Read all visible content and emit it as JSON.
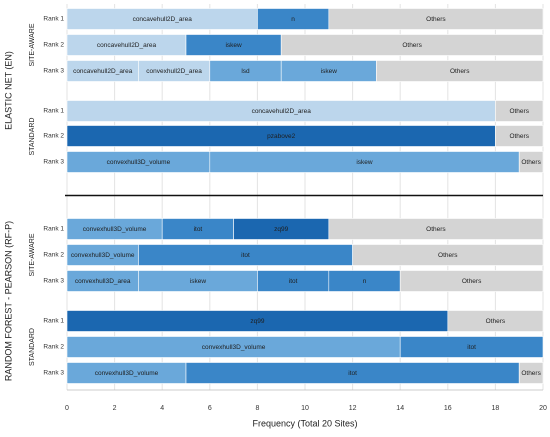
{
  "chart_data": {
    "type": "bar",
    "orientation": "horizontal",
    "stacked": true,
    "xlabel": "Frequency (Total 20 Sites)",
    "xlim": [
      0,
      20
    ],
    "xticks": [
      0,
      2,
      4,
      6,
      8,
      10,
      12,
      14,
      16,
      18,
      20
    ],
    "grid": true,
    "colors": {
      "very_light": "#bcd6ec",
      "light": "#6aa8da",
      "medium": "#3a86c8",
      "dark": "#1b67b0",
      "others": "#d4d4d4"
    },
    "models": [
      {
        "label": "ELASTIC NET (EN)",
        "groups": [
          {
            "label": "SITE-AWARE",
            "rows": [
              {
                "rank": "Rank 1",
                "segments": [
                  {
                    "label": "concavehull2D_area",
                    "value": 8,
                    "shade": "very_light"
                  },
                  {
                    "label": "n",
                    "value": 3,
                    "shade": "medium"
                  },
                  {
                    "label": "Others",
                    "value": 9,
                    "shade": "others"
                  }
                ]
              },
              {
                "rank": "Rank 2",
                "segments": [
                  {
                    "label": "concavehull2D_area",
                    "value": 5,
                    "shade": "very_light"
                  },
                  {
                    "label": "iskew",
                    "value": 4,
                    "shade": "medium"
                  },
                  {
                    "label": "Others",
                    "value": 11,
                    "shade": "others"
                  }
                ]
              },
              {
                "rank": "Rank 3",
                "segments": [
                  {
                    "label": "concavehull2D_area",
                    "value": 3,
                    "shade": "very_light"
                  },
                  {
                    "label": "convexhull2D_area",
                    "value": 3,
                    "shade": "very_light"
                  },
                  {
                    "label": "lsd",
                    "value": 3,
                    "shade": "light"
                  },
                  {
                    "label": "iskew",
                    "value": 4,
                    "shade": "light"
                  },
                  {
                    "label": "Others",
                    "value": 7,
                    "shade": "others"
                  }
                ]
              }
            ]
          },
          {
            "label": "STANDARD",
            "rows": [
              {
                "rank": "Rank 1",
                "segments": [
                  {
                    "label": "concavehull2D_area",
                    "value": 18,
                    "shade": "very_light"
                  },
                  {
                    "label": "Others",
                    "value": 2,
                    "shade": "others"
                  }
                ]
              },
              {
                "rank": "Rank 2",
                "segments": [
                  {
                    "label": "pzabove2",
                    "value": 18,
                    "shade": "dark"
                  },
                  {
                    "label": "Others",
                    "value": 2,
                    "shade": "others"
                  }
                ]
              },
              {
                "rank": "Rank 3",
                "segments": [
                  {
                    "label": "convexhull3D_volume",
                    "value": 6,
                    "shade": "light"
                  },
                  {
                    "label": "iskew",
                    "value": 13,
                    "shade": "light"
                  },
                  {
                    "label": "Others",
                    "value": 1,
                    "shade": "others"
                  }
                ]
              }
            ]
          }
        ]
      },
      {
        "label": "RANDOM FOREST - PEARSON (RF-P)",
        "groups": [
          {
            "label": "SITE-AWARE",
            "rows": [
              {
                "rank": "Rank 1",
                "segments": [
                  {
                    "label": "convexhull3D_volume",
                    "value": 4,
                    "shade": "light"
                  },
                  {
                    "label": "itot",
                    "value": 3,
                    "shade": "medium"
                  },
                  {
                    "label": "zq99",
                    "value": 4,
                    "shade": "dark"
                  },
                  {
                    "label": "Others",
                    "value": 9,
                    "shade": "others"
                  }
                ]
              },
              {
                "rank": "Rank 2",
                "segments": [
                  {
                    "label": "convexhull3D_volume",
                    "value": 3,
                    "shade": "light"
                  },
                  {
                    "label": "itot",
                    "value": 9,
                    "shade": "medium"
                  },
                  {
                    "label": "Others",
                    "value": 8,
                    "shade": "others"
                  }
                ]
              },
              {
                "rank": "Rank 3",
                "segments": [
                  {
                    "label": "convexhull3D_area",
                    "value": 3,
                    "shade": "light"
                  },
                  {
                    "label": "iskew",
                    "value": 5,
                    "shade": "light"
                  },
                  {
                    "label": "itot",
                    "value": 3,
                    "shade": "medium"
                  },
                  {
                    "label": "n",
                    "value": 3,
                    "shade": "medium"
                  },
                  {
                    "label": "Others",
                    "value": 6,
                    "shade": "others"
                  }
                ]
              }
            ]
          },
          {
            "label": "STANDARD",
            "rows": [
              {
                "rank": "Rank 1",
                "segments": [
                  {
                    "label": "zq99",
                    "value": 16,
                    "shade": "dark"
                  },
                  {
                    "label": "Others",
                    "value": 4,
                    "shade": "others"
                  }
                ]
              },
              {
                "rank": "Rank 2",
                "segments": [
                  {
                    "label": "convexhull3D_volume",
                    "value": 14,
                    "shade": "light"
                  },
                  {
                    "label": "itot",
                    "value": 6,
                    "shade": "medium"
                  }
                ]
              },
              {
                "rank": "Rank 3",
                "segments": [
                  {
                    "label": "convexhull3D_volume",
                    "value": 5,
                    "shade": "light"
                  },
                  {
                    "label": "itot",
                    "value": 14,
                    "shade": "medium"
                  },
                  {
                    "label": "Others",
                    "value": 1,
                    "shade": "others"
                  }
                ]
              }
            ]
          }
        ]
      }
    ]
  }
}
